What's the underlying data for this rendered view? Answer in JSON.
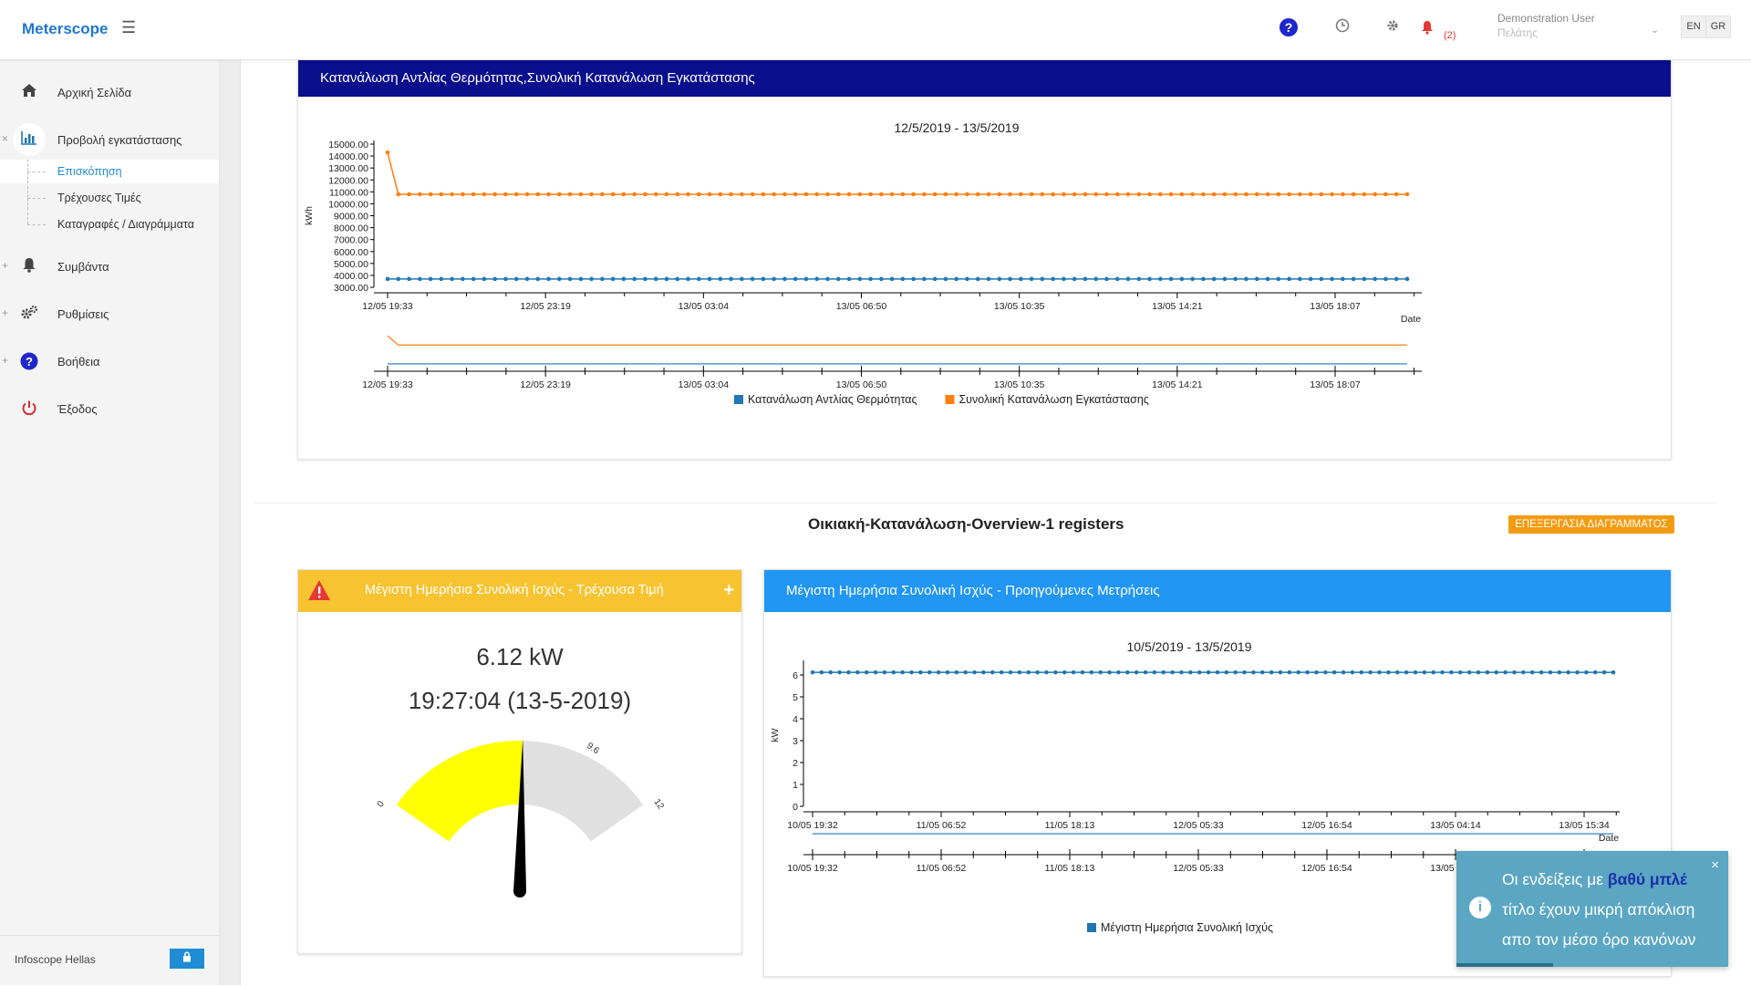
{
  "header": {
    "brand": "Meterscope",
    "notif_count": "(2)",
    "user_name": "Demonstration User",
    "user_role": "Πελάτης",
    "lang_en": "EN",
    "lang_gr": "GR"
  },
  "sidebar": {
    "items": [
      {
        "label": "Αρχική Σελίδα",
        "icon": "home-icon"
      },
      {
        "label": "Προβολή εγκατάστασης",
        "icon": "bar-chart-icon"
      },
      {
        "label": "Συμβάντα",
        "icon": "bell-icon"
      },
      {
        "label": "Ρυθμίσεις",
        "icon": "gears-icon"
      },
      {
        "label": "Βοήθεια",
        "icon": "help-icon"
      },
      {
        "label": "Έξοδος",
        "icon": "power-icon"
      }
    ],
    "subitems": [
      "Επισκόπηση",
      "Τρέχουσες Τιμές",
      "Καταγραφές / Διαγράμματα"
    ],
    "footer": "Infoscope Hellas"
  },
  "panel1": {
    "title": "Κατανάλωση Αντλίας Θερμότητας,Συνολική Κατανάλωση Εγκατάστασης"
  },
  "section2": {
    "title": "Οικιακή-Κατανάλωση-Overview-1 registers",
    "edit_button": "ΕΠΕΞΕΡΓΑΣΙΑ ΔΙΑΓΡΑΜΜΑΤΟΣ"
  },
  "gauge_panel": {
    "title": "Μέγιστη Ημερήσια Συνολική Ισχύς - Τρέχουσα Τιμή",
    "plus": "+",
    "value": "6.12 kW",
    "timestamp": "19:27:04 (13-5-2019)",
    "gauge_value": 6.12,
    "gauge_min": 0,
    "gauge_max": 12,
    "gauge_mid_label": "9.6",
    "fill_color": "#ffff00",
    "rest_color": "#e0e0e0"
  },
  "chart_panel": {
    "title": "Μέγιστη Ημερήσια Συνολική Ισχύς - Προηγούμενες Μετρήσεις"
  },
  "toast": {
    "text_before": "Οι ενδείξεις με ",
    "highlight": "βαθύ μπλέ",
    "text_after": " τίτλο έχουν μικρή απόκλιση απο τον μέσο όρο κανόνων",
    "close": "×"
  },
  "colors": {
    "panel1_header": "#0a0f8c",
    "gauge_header": "#f7c331",
    "chart_header": "#2196f3",
    "series_blue": "#1f77b4",
    "series_orange": "#ff7f0e",
    "edit_button": "#f39c12"
  },
  "chart_data": [
    {
      "type": "line",
      "title": "12/5/2019 - 13/5/2019",
      "xlabel": "Date",
      "ylabel": "kWh",
      "ylim": [
        3000,
        15000
      ],
      "y_ticks": [
        "15000.00",
        "14000.00",
        "13000.00",
        "12000.00",
        "11000.00",
        "10000.00",
        "9000.00",
        "8000.00",
        "7000.00",
        "6000.00",
        "5000.00",
        "4000.00",
        "3000.00"
      ],
      "x_ticks": [
        "12/05 19:33",
        "12/05 23:19",
        "13/05 03:04",
        "13/05 06:50",
        "13/05 10:35",
        "13/05 14:21",
        "13/05 18:07"
      ],
      "series": [
        {
          "name": "Κατανάλωση Αντλίας Θερμότητας",
          "color": "#1f77b4",
          "first": 3700,
          "rest": 3700,
          "points": 96
        },
        {
          "name": "Συνολική Κατανάλωση Εγκατάστασης",
          "color": "#ff7f0e",
          "first": 14300,
          "rest": 10800,
          "points": 96
        }
      ],
      "legend": "bottom"
    },
    {
      "type": "line",
      "title": "10/5/2019 - 13/5/2019",
      "xlabel": "Date",
      "ylabel": "kW",
      "ylim": [
        0,
        6.5
      ],
      "y_ticks": [
        "6",
        "5",
        "4",
        "3",
        "2",
        "1",
        "0"
      ],
      "x_ticks": [
        "10/05 19:32",
        "11/05 06:52",
        "11/05 18:13",
        "12/05 05:33",
        "12/05 16:54",
        "13/05 04:14",
        "13/05 15:34"
      ],
      "series": [
        {
          "name": "Μέγιστη Ημερήσια Συνολική Ισχύς",
          "color": "#1f77b4",
          "first": 6.12,
          "rest": 6.12,
          "points": 90
        }
      ],
      "legend": "bottom"
    }
  ]
}
